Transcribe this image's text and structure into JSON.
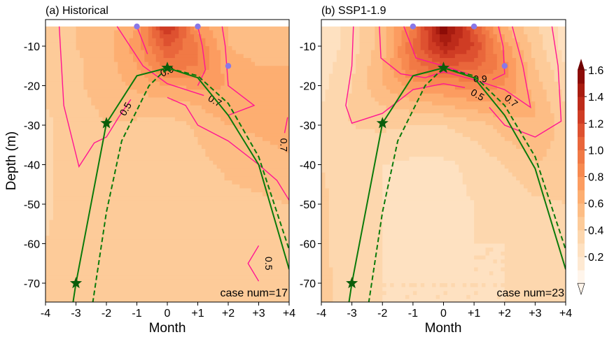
{
  "chart_data": [
    {
      "type": "heatmap",
      "title": "(a) Historical",
      "xlabel": "Month",
      "ylabel": "Depth (m)",
      "xlim": [
        -4,
        4
      ],
      "ylim": [
        -75,
        -5
      ],
      "x_ticks": [
        "-4",
        "-3",
        "-2",
        "-1",
        "0",
        "+1",
        "+2",
        "+3",
        "+4"
      ],
      "y_ticks": [
        "-10",
        "-20",
        "-30",
        "-40",
        "-50",
        "-60",
        "-70"
      ],
      "annotation": "case num=17",
      "grid_x": [
        -4,
        -3,
        -2,
        -1,
        0,
        1,
        2,
        3,
        4
      ],
      "grid_depth": [
        -5,
        -10,
        -15,
        -20,
        -25,
        -30,
        -40,
        -50,
        -60,
        -70,
        -75
      ],
      "values": [
        [
          0.45,
          0.5,
          0.55,
          0.7,
          1.35,
          0.75,
          0.6,
          0.55,
          0.55
        ],
        [
          0.45,
          0.5,
          0.55,
          0.75,
          1.1,
          0.9,
          0.6,
          0.55,
          0.55
        ],
        [
          0.42,
          0.48,
          0.55,
          0.7,
          0.95,
          0.9,
          0.65,
          0.6,
          0.6
        ],
        [
          0.42,
          0.48,
          0.55,
          0.62,
          0.7,
          0.72,
          0.7,
          0.65,
          0.65
        ],
        [
          0.4,
          0.47,
          0.52,
          0.55,
          0.55,
          0.6,
          0.68,
          0.7,
          0.65
        ],
        [
          0.38,
          0.45,
          0.5,
          0.48,
          0.45,
          0.52,
          0.6,
          0.62,
          0.65
        ],
        [
          0.38,
          0.45,
          0.47,
          0.45,
          0.42,
          0.47,
          0.52,
          0.55,
          0.58
        ],
        [
          0.38,
          0.45,
          0.45,
          0.45,
          0.45,
          0.45,
          0.47,
          0.48,
          0.5
        ],
        [
          0.4,
          0.45,
          0.45,
          0.45,
          0.45,
          0.45,
          0.46,
          0.48,
          0.48
        ],
        [
          0.4,
          0.45,
          0.45,
          0.45,
          0.45,
          0.45,
          0.46,
          0.48,
          0.48
        ],
        [
          0.4,
          0.45,
          0.45,
          0.45,
          0.45,
          0.45,
          0.46,
          0.47,
          0.48
        ]
      ],
      "contours": [
        {
          "level": "0.5",
          "points": [
            [
              -3.55,
              -5
            ],
            [
              -3.4,
              -25
            ],
            [
              -2.9,
              -40.5
            ],
            [
              -2.4,
              -34.5
            ],
            [
              -2.0,
              -33
            ],
            [
              -1.6,
              -28
            ],
            [
              -1.2,
              -23.5
            ]
          ],
          "label": {
            "text": "0.5",
            "x": -1.35,
            "y": -26,
            "angle": -60
          }
        },
        {
          "level": "0.5",
          "points": [
            [
              0.0,
              -23
            ],
            [
              0.6,
              -25
            ],
            [
              1.0,
              -30
            ],
            [
              2.0,
              -34
            ],
            [
              3.0,
              -40
            ],
            [
              3.6,
              -44
            ],
            [
              4.0,
              -49
            ]
          ]
        },
        {
          "level": "0.5",
          "points": [
            [
              3.0,
              -60.5
            ],
            [
              2.65,
              -65
            ],
            [
              3.0,
              -69.5
            ]
          ],
          "label": {
            "text": "0.5",
            "x": 3.3,
            "y": -65,
            "angle": 90
          }
        },
        {
          "level": "0.7",
          "points": [
            [
              -1.65,
              -5
            ],
            [
              -0.8,
              -15
            ],
            [
              0.0,
              -19.5
            ],
            [
              1.2,
              -22.5
            ]
          ],
          "label": {
            "text": "0.7",
            "x": 1.55,
            "y": -24,
            "angle": 30
          }
        },
        {
          "level": "0.7",
          "points": [
            [
              1.8,
              -5
            ],
            [
              1.9,
              -10
            ],
            [
              2.0,
              -20
            ],
            [
              2.85,
              -25
            ],
            [
              2.0,
              -27.5
            ]
          ]
        },
        {
          "level": "0.7",
          "points": [
            [
              3.95,
              -28
            ],
            [
              3.85,
              -32
            ]
          ],
          "label": {
            "text": "0.7",
            "x": 3.8,
            "y": -35,
            "angle": 90
          }
        },
        {
          "level": "0.9",
          "points": [
            [
              -1.0,
              -5
            ],
            [
              -0.65,
              -12
            ]
          ]
        },
        {
          "level": "0.9",
          "points": [
            [
              1.0,
              -5
            ],
            [
              1.15,
              -10
            ],
            [
              1.25,
              -16
            ],
            [
              1.0,
              -20
            ]
          ],
          "label": {
            "text": "0.9",
            "x": 0.0,
            "y": -16.5,
            "angle": -25
          }
        }
      ],
      "dots": [
        [
          -1.0,
          -5
        ],
        [
          1.0,
          -5
        ],
        [
          2.0,
          -15
        ]
      ],
      "solid_line": [
        [
          -3.1,
          -75
        ],
        [
          -3.0,
          -70
        ],
        [
          -2.0,
          -29.5
        ],
        [
          -1.0,
          -17.5
        ],
        [
          0.0,
          -15.5
        ],
        [
          1.0,
          -18
        ],
        [
          2.0,
          -27.5
        ],
        [
          3.0,
          -40
        ],
        [
          4.0,
          -66.5
        ]
      ],
      "dashed_line": [
        [
          -2.45,
          -75
        ],
        [
          -2.0,
          -52
        ],
        [
          -1.5,
          -34
        ],
        [
          -0.6,
          -20
        ],
        [
          0.0,
          -15.5
        ],
        [
          1.0,
          -17.5
        ],
        [
          2.0,
          -24.5
        ],
        [
          3.0,
          -38
        ],
        [
          4.0,
          -61.5
        ]
      ],
      "stars": [
        [
          -3.0,
          -70
        ],
        [
          -2.0,
          -29.5
        ],
        [
          0.0,
          -15.5
        ]
      ]
    },
    {
      "type": "heatmap",
      "title": "(b) SSP1-1.9",
      "xlabel": "Month",
      "ylabel": "",
      "xlim": [
        -4,
        4
      ],
      "ylim": [
        -75,
        -5
      ],
      "x_ticks": [
        "-4",
        "-3",
        "-2",
        "-1",
        "0",
        "+1",
        "+2",
        "+3",
        "+4"
      ],
      "y_ticks": [
        "-10",
        "-20",
        "-30",
        "-40",
        "-50",
        "-60",
        "-70"
      ],
      "annotation": "case num=23",
      "grid_x": [
        -4,
        -3,
        -2,
        -1,
        0,
        1,
        2,
        3,
        4
      ],
      "grid_depth": [
        -5,
        -10,
        -15,
        -20,
        -25,
        -30,
        -40,
        -50,
        -60,
        -70,
        -75
      ],
      "values": [
        [
          0.22,
          0.35,
          0.55,
          0.9,
          1.6,
          1.1,
          0.6,
          0.42,
          0.25
        ],
        [
          0.22,
          0.35,
          0.55,
          1.0,
          1.4,
          1.2,
          0.75,
          0.45,
          0.25
        ],
        [
          0.25,
          0.38,
          0.6,
          0.95,
          1.1,
          1.05,
          0.85,
          0.5,
          0.3
        ],
        [
          0.27,
          0.4,
          0.6,
          0.75,
          0.8,
          0.85,
          0.8,
          0.55,
          0.35
        ],
        [
          0.3,
          0.42,
          0.5,
          0.55,
          0.6,
          0.65,
          0.7,
          0.6,
          0.4
        ],
        [
          0.35,
          0.4,
          0.42,
          0.4,
          0.4,
          0.45,
          0.55,
          0.6,
          0.45
        ],
        [
          0.4,
          0.35,
          0.3,
          0.28,
          0.28,
          0.32,
          0.4,
          0.5,
          0.45
        ],
        [
          0.42,
          0.35,
          0.3,
          0.28,
          0.28,
          0.3,
          0.32,
          0.38,
          0.4
        ],
        [
          0.42,
          0.35,
          0.3,
          0.28,
          0.28,
          0.3,
          0.3,
          0.32,
          0.36
        ],
        [
          0.42,
          0.36,
          0.3,
          0.3,
          0.3,
          0.3,
          0.3,
          0.32,
          0.34
        ],
        [
          0.42,
          0.36,
          0.3,
          0.3,
          0.3,
          0.3,
          0.3,
          0.3,
          0.32
        ]
      ],
      "contours": [
        {
          "level": "0.5",
          "points": [
            [
              -2.95,
              -5
            ],
            [
              -3.0,
              -15
            ],
            [
              -3.2,
              -25
            ],
            [
              -3.0,
              -29.5
            ],
            [
              -2.0,
              -27
            ],
            [
              -1.0,
              -21
            ],
            [
              0.0,
              -19.5
            ],
            [
              0.7,
              -20.5
            ]
          ],
          "label": {
            "text": "0.5",
            "x": 1.1,
            "y": -22.5,
            "angle": 30
          }
        },
        {
          "level": "0.5",
          "points": [
            [
              1.5,
              -25.5
            ],
            [
              2.0,
              -30
            ],
            [
              3.0,
              -33
            ],
            [
              3.85,
              -29
            ],
            [
              3.75,
              -15
            ],
            [
              3.55,
              -5
            ]
          ]
        },
        {
          "level": "0.7",
          "points": [
            [
              -2.1,
              -5
            ],
            [
              -2.05,
              -13
            ],
            [
              -1.4,
              -17
            ],
            [
              -0.6,
              -18
            ],
            [
              0.0,
              -16.5
            ],
            [
              1.0,
              -18.5
            ],
            [
              2.0,
              -21
            ],
            [
              2.85,
              -25.5
            ],
            [
              2.6,
              -15
            ],
            [
              2.25,
              -5
            ]
          ],
          "label": {
            "text": "0.7",
            "x": 2.2,
            "y": -24,
            "angle": 40
          }
        },
        {
          "level": "0.9",
          "points": [
            [
              -1.3,
              -5
            ],
            [
              -0.9,
              -13
            ],
            [
              0.0,
              -15
            ],
            [
              0.8,
              -17
            ]
          ]
        },
        {
          "level": "0.9",
          "points": [
            [
              1.6,
              -18.5
            ],
            [
              2.0,
              -17
            ],
            [
              1.95,
              -10
            ],
            [
              1.8,
              -5
            ]
          ],
          "label": {
            "text": "0.9",
            "x": 1.2,
            "y": -18.5,
            "angle": 0
          }
        }
      ],
      "dots": [
        [
          -1.0,
          -5
        ],
        [
          1.0,
          -5
        ],
        [
          2.0,
          -15
        ]
      ],
      "solid_line": [
        [
          -3.1,
          -75
        ],
        [
          -3.0,
          -70
        ],
        [
          -2.0,
          -29.5
        ],
        [
          -1.0,
          -17.5
        ],
        [
          0.0,
          -15.5
        ],
        [
          1.0,
          -18
        ],
        [
          2.0,
          -27.5
        ],
        [
          3.0,
          -41
        ],
        [
          4.0,
          -66.5
        ]
      ],
      "dashed_line": [
        [
          -2.45,
          -75
        ],
        [
          -2.0,
          -52
        ],
        [
          -1.5,
          -34
        ],
        [
          -0.6,
          -20
        ],
        [
          0.0,
          -15.5
        ],
        [
          1.0,
          -17.5
        ],
        [
          2.0,
          -25
        ],
        [
          3.0,
          -38
        ],
        [
          4.0,
          -61.5
        ]
      ],
      "stars": [
        [
          -3.0,
          -70
        ],
        [
          -2.0,
          -29.5
        ],
        [
          0.0,
          -15.5
        ]
      ]
    }
  ],
  "colorbar": {
    "ticks": [
      "0.2",
      "0.4",
      "0.6",
      "0.8",
      "1.0",
      "1.2",
      "1.4",
      "1.6"
    ],
    "tick_values": [
      0.2,
      0.4,
      0.6,
      0.8,
      1.0,
      1.2,
      1.4,
      1.6
    ],
    "range": [
      0.0,
      1.6
    ],
    "levels_step": 0.1,
    "extend": "both",
    "colors": [
      "#fff5eb",
      "#fee9d2",
      "#fee1c1",
      "#fdd7ae",
      "#fdcb99",
      "#fdbd85",
      "#fdae71",
      "#fc9c60",
      "#f78a50",
      "#f17945",
      "#e9663b",
      "#de5130",
      "#cf3c24",
      "#bd2b1a",
      "#a81c10",
      "#8d0c07",
      "#6e0000"
    ]
  },
  "styles": {
    "contour_color": "#ff1493",
    "line_color": "#0a7a0a",
    "star_color": "#0b5d0b",
    "dot_color": "#8878e8"
  }
}
